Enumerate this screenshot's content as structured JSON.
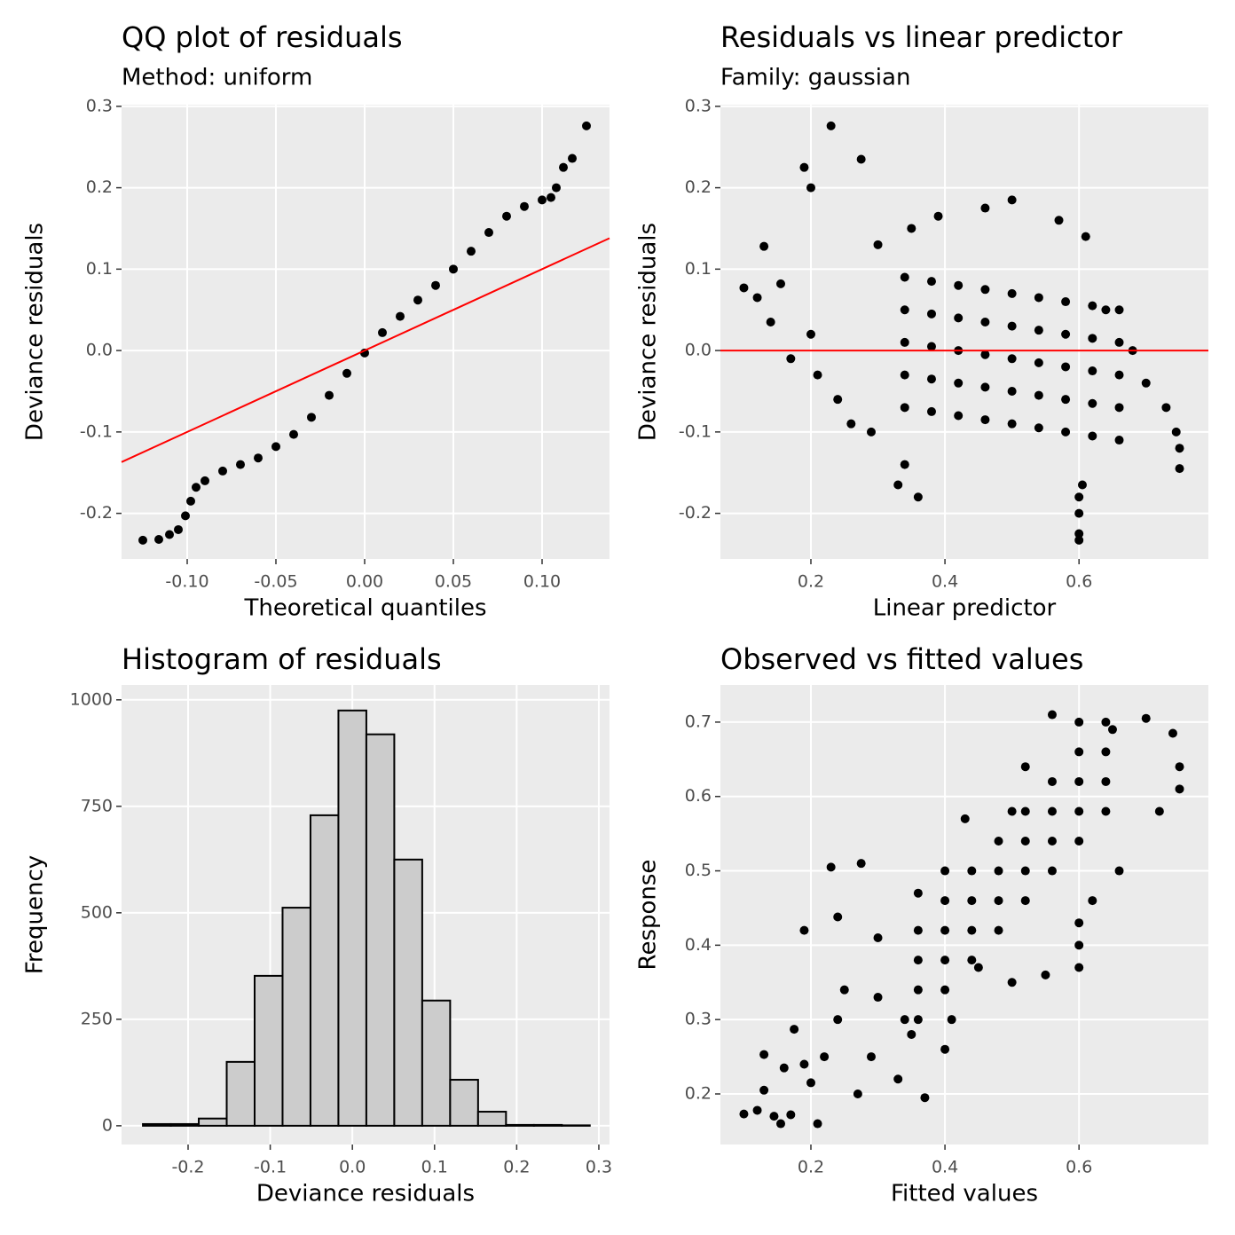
{
  "chart_data": [
    {
      "type": "scatter",
      "title": "QQ plot of residuals",
      "subtitle": "Method: uniform",
      "x_label": "Theoretical quantiles",
      "y_label": "Deviance residuals",
      "xlim": [
        -0.137,
        0.138
      ],
      "ylim": [
        -0.256,
        0.302
      ],
      "xticks": [
        {
          "value": -0.1,
          "label": "-0.10"
        },
        {
          "value": -0.05,
          "label": "-0.05"
        },
        {
          "value": 0,
          "label": "0.00"
        },
        {
          "value": 0.05,
          "label": "0.05"
        },
        {
          "value": 0.1,
          "label": "0.10"
        }
      ],
      "yticks": [
        -0.2,
        -0.1,
        {
          "value": 0,
          "label": "0.0"
        },
        0.1,
        0.2,
        0.3
      ],
      "grid": true,
      "color": "#000000",
      "reference_line": {
        "slope": 1,
        "intercept": 0,
        "color": "#ff0000"
      },
      "x": [
        -0.125,
        -0.116,
        -0.11,
        -0.105,
        -0.101,
        -0.098,
        -0.095,
        -0.09,
        -0.08,
        -0.07,
        -0.06,
        -0.05,
        -0.04,
        -0.03,
        -0.02,
        -0.01,
        0,
        0.01,
        0.02,
        0.03,
        0.04,
        0.05,
        0.06,
        0.07,
        0.08,
        0.09,
        0.1,
        0.105,
        0.108,
        0.112,
        0.117,
        0.125
      ],
      "values": [
        -0.233,
        -0.232,
        -0.226,
        -0.22,
        -0.203,
        -0.185,
        -0.168,
        -0.16,
        -0.148,
        -0.14,
        -0.132,
        -0.118,
        -0.103,
        -0.082,
        -0.055,
        -0.028,
        -0.003,
        0.022,
        0.042,
        0.062,
        0.08,
        0.1,
        0.122,
        0.145,
        0.165,
        0.177,
        0.185,
        0.188,
        0.2,
        0.225,
        0.236,
        0.276
      ]
    },
    {
      "type": "scatter",
      "title": "Residuals vs linear predictor",
      "subtitle": "Family: gaussian",
      "x_label": "Linear predictor",
      "y_label": "Deviance residuals",
      "xlim": [
        0.065,
        0.793
      ],
      "ylim": [
        -0.256,
        0.302
      ],
      "xticks": [
        0.2,
        0.4,
        0.6
      ],
      "yticks": [
        -0.2,
        -0.1,
        {
          "value": 0,
          "label": "0.0"
        },
        0.1,
        0.2,
        0.3
      ],
      "grid": true,
      "color": "#000000",
      "hline": {
        "value": 0,
        "color": "#ff0000"
      },
      "x": [
        0.23,
        0.19,
        0.275,
        0.2,
        0.1,
        0.12,
        0.13,
        0.155,
        0.14,
        0.17,
        0.2,
        0.21,
        0.24,
        0.26,
        0.29,
        0.33,
        0.36,
        0.34,
        0.6,
        0.6,
        0.6,
        0.6,
        0.605,
        0.75,
        0.75,
        0.745,
        0.73,
        0.7,
        0.68,
        0.64,
        0.61,
        0.57,
        0.5,
        0.46,
        0.39,
        0.35,
        0.3,
        0.34,
        0.34,
        0.34,
        0.34,
        0.34,
        0.38,
        0.38,
        0.38,
        0.38,
        0.38,
        0.42,
        0.42,
        0.42,
        0.42,
        0.42,
        0.46,
        0.46,
        0.46,
        0.46,
        0.46,
        0.5,
        0.5,
        0.5,
        0.5,
        0.5,
        0.54,
        0.54,
        0.54,
        0.54,
        0.54,
        0.58,
        0.58,
        0.58,
        0.58,
        0.58,
        0.62,
        0.62,
        0.62,
        0.62,
        0.62,
        0.66,
        0.66,
        0.66,
        0.66,
        0.66
      ],
      "values": [
        0.276,
        0.225,
        0.235,
        0.2,
        0.077,
        0.065,
        0.128,
        0.082,
        0.035,
        -0.01,
        0.02,
        -0.03,
        -0.06,
        -0.09,
        -0.1,
        -0.165,
        -0.18,
        -0.14,
        -0.233,
        -0.225,
        -0.2,
        -0.18,
        -0.165,
        -0.145,
        -0.12,
        -0.1,
        -0.07,
        -0.04,
        0.0,
        0.05,
        0.14,
        0.16,
        0.185,
        0.175,
        0.165,
        0.15,
        0.13,
        -0.07,
        -0.03,
        0.01,
        0.05,
        0.09,
        -0.075,
        -0.035,
        0.005,
        0.045,
        0.085,
        -0.08,
        -0.04,
        0.0,
        0.04,
        0.08,
        -0.085,
        -0.045,
        -0.005,
        0.035,
        0.075,
        -0.09,
        -0.05,
        -0.01,
        0.03,
        0.07,
        -0.095,
        -0.055,
        -0.015,
        0.025,
        0.065,
        -0.1,
        -0.06,
        -0.02,
        0.02,
        0.06,
        -0.105,
        -0.065,
        -0.025,
        0.015,
        0.055,
        -0.11,
        -0.07,
        -0.03,
        0.01,
        0.05
      ]
    },
    {
      "type": "histogram",
      "title": "Histogram of residuals",
      "x_label": "Deviance residuals",
      "y_label": "Frequency",
      "xlim": [
        -0.281,
        0.313
      ],
      "ylim": [
        -44,
        1035
      ],
      "xticks": [
        -0.2,
        -0.1,
        {
          "value": 0,
          "label": "0.0"
        },
        0.1,
        0.2,
        0.3
      ],
      "yticks": [
        0,
        250,
        500,
        750,
        1000
      ],
      "grid": true,
      "color": "#cccccc",
      "edge_color": "#000000",
      "bins": [
        -0.255,
        -0.221,
        -0.187,
        -0.153,
        -0.119,
        -0.085,
        -0.051,
        -0.017,
        0.017,
        0.051,
        0.085,
        0.119,
        0.153,
        0.187,
        0.221,
        0.255,
        0.289
      ],
      "values": [
        4,
        4,
        17,
        150,
        352,
        512,
        729,
        975,
        919,
        625,
        294,
        108,
        33,
        2,
        2,
        1
      ]
    },
    {
      "type": "scatter",
      "title": "Observed vs fitted values",
      "x_label": "Fitted values",
      "y_label": "Response",
      "xlim": [
        0.065,
        0.793
      ],
      "ylim": [
        0.132,
        0.75
      ],
      "xticks": [
        0.2,
        0.4,
        0.6
      ],
      "yticks": [
        0.2,
        0.3,
        0.4,
        0.5,
        0.6,
        0.7
      ],
      "grid": true,
      "color": "#000000",
      "x": [
        0.1,
        0.12,
        0.13,
        0.13,
        0.145,
        0.155,
        0.16,
        0.17,
        0.175,
        0.19,
        0.2,
        0.21,
        0.22,
        0.19,
        0.23,
        0.24,
        0.275,
        0.24,
        0.25,
        0.27,
        0.29,
        0.3,
        0.3,
        0.33,
        0.35,
        0.34,
        0.37,
        0.4,
        0.41,
        0.45,
        0.4,
        0.36,
        0.43,
        0.5,
        0.52,
        0.56,
        0.6,
        0.65,
        0.7,
        0.74,
        0.75,
        0.75,
        0.72,
        0.6,
        0.6,
        0.6,
        0.62,
        0.66,
        0.55,
        0.5,
        0.36,
        0.36,
        0.36,
        0.36,
        0.4,
        0.4,
        0.4,
        0.4,
        0.44,
        0.44,
        0.44,
        0.44,
        0.48,
        0.48,
        0.48,
        0.48,
        0.52,
        0.52,
        0.52,
        0.52,
        0.56,
        0.56,
        0.56,
        0.56,
        0.6,
        0.6,
        0.6,
        0.6,
        0.64,
        0.64,
        0.64,
        0.64
      ],
      "values": [
        0.173,
        0.178,
        0.205,
        0.253,
        0.17,
        0.16,
        0.235,
        0.172,
        0.287,
        0.24,
        0.215,
        0.16,
        0.25,
        0.42,
        0.505,
        0.438,
        0.51,
        0.3,
        0.34,
        0.2,
        0.25,
        0.33,
        0.41,
        0.22,
        0.28,
        0.3,
        0.195,
        0.26,
        0.3,
        0.37,
        0.5,
        0.47,
        0.57,
        0.58,
        0.64,
        0.71,
        0.7,
        0.69,
        0.705,
        0.685,
        0.64,
        0.61,
        0.58,
        0.37,
        0.4,
        0.43,
        0.46,
        0.5,
        0.36,
        0.35,
        0.3,
        0.34,
        0.38,
        0.42,
        0.34,
        0.38,
        0.42,
        0.46,
        0.38,
        0.42,
        0.46,
        0.5,
        0.42,
        0.46,
        0.5,
        0.54,
        0.46,
        0.5,
        0.54,
        0.58,
        0.5,
        0.54,
        0.58,
        0.62,
        0.54,
        0.58,
        0.62,
        0.66,
        0.58,
        0.62,
        0.66,
        0.7
      ]
    }
  ]
}
